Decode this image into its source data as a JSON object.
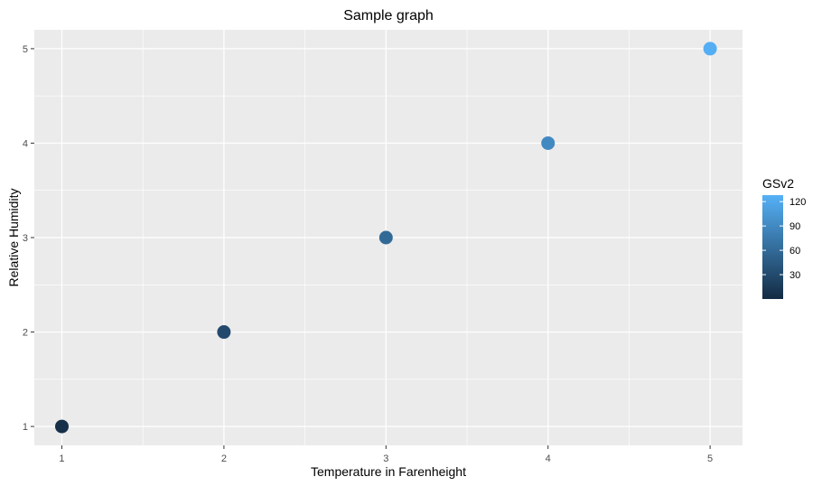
{
  "chart_data": {
    "type": "scatter",
    "title": "Sample graph",
    "xlabel": "Temperature in Farenheight",
    "ylabel": "Relative Humidity",
    "x": [
      1,
      2,
      3,
      4,
      5
    ],
    "y": [
      1,
      2,
      3,
      4,
      5
    ],
    "color_values": [
      5,
      30,
      60,
      90,
      125
    ],
    "xlim": [
      0.83,
      5.2
    ],
    "ylim": [
      0.8,
      5.2
    ],
    "xticks": [
      "1",
      "2",
      "3",
      "4",
      "5"
    ],
    "yticks": [
      "1",
      "2",
      "3",
      "4",
      "5"
    ],
    "grid": true,
    "legend": {
      "title": "GSv2",
      "placement": "right",
      "ticks": [
        "30",
        "60",
        "90",
        "120"
      ],
      "tick_values": [
        30,
        60,
        90,
        120
      ],
      "range": [
        0,
        128
      ],
      "color_low": "#132B43",
      "color_high": "#56B1F7"
    },
    "panel_background": "#EBEBEB",
    "grid_color": "#FFFFFF"
  }
}
